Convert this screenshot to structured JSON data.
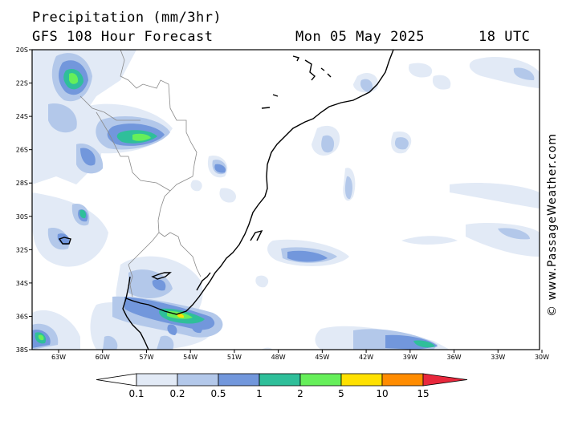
{
  "header": {
    "title": "Precipitation (mm/3hr)",
    "model": "GFS 108 Hour Forecast",
    "valid_date": "Mon 05 May 2025",
    "valid_time": "18 UTC"
  },
  "credit": "© www.PassageWeather.com",
  "map": {
    "lat_labels": [
      "20S",
      "22S",
      "24S",
      "26S",
      "28S",
      "30S",
      "32S",
      "34S",
      "36S",
      "38S"
    ],
    "lon_labels": [
      "63W",
      "60W",
      "57W",
      "54W",
      "51W",
      "48W",
      "45W",
      "42W",
      "39W",
      "36W",
      "33W",
      "30W"
    ]
  },
  "legend": {
    "labels": [
      "0.1",
      "0.2",
      "0.5",
      "1",
      "2",
      "5",
      "10",
      "15"
    ],
    "colors": [
      "#ffffff",
      "#e2eaf6",
      "#b3c8ea",
      "#7297dc",
      "#2fbf9a",
      "#66ef5a",
      "#ffe100",
      "#ff8c00",
      "#e8283c"
    ]
  }
}
